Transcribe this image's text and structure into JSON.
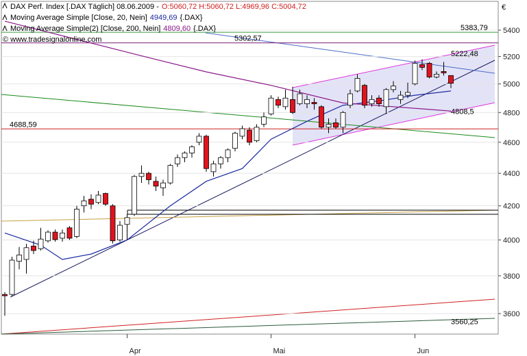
{
  "chart_data": {
    "type": "candlestick",
    "header": {
      "name": "DAX Perf. Index [.DAX  Täglich] 08.06.2009 -",
      "ohlc": "O:5060,72 H:5060,72 L:4969,96 C:5004,72"
    },
    "copyright": "© www.tradesignalonline.com",
    "currency": "€",
    "categories": [
      null,
      null,
      null,
      null,
      null,
      null,
      null,
      null,
      null,
      null,
      null,
      null,
      null,
      null,
      null,
      null,
      null,
      "Apr",
      null,
      null,
      null,
      null,
      null,
      null,
      null,
      null,
      null,
      null,
      null,
      null,
      null,
      null,
      null,
      null,
      null,
      null,
      null,
      "Mai",
      null,
      null,
      null,
      null,
      null,
      null,
      null,
      null,
      null,
      null,
      null,
      null,
      null,
      null,
      null,
      null,
      null,
      null,
      null,
      "Jun",
      null,
      null,
      null,
      null,
      null
    ],
    "open": [
      3700,
      3700,
      3880,
      3890,
      3965,
      3950,
      3995,
      4045,
      4010,
      4070,
      4020,
      4200,
      4240,
      4220,
      4275,
      4200,
      4000,
      4090,
      4150,
      4380,
      4400,
      4350,
      4310,
      4340,
      4460,
      4500,
      4530,
      4600,
      4640,
      4410,
      4460,
      4500,
      4560,
      4640,
      4680,
      4610,
      4720,
      4790,
      4890,
      4840,
      4890,
      4860,
      4860,
      4870,
      4840,
      4700,
      4730,
      4700,
      4850,
      4950,
      4990,
      4860,
      4900,
      4840,
      4960,
      4890,
      4920,
      5000,
      5140,
      5150,
      5050,
      5090,
      5060.72
    ],
    "high": [
      3712,
      3905,
      3960,
      3978,
      3995,
      4070,
      4055,
      4060,
      4060,
      4080,
      4200,
      4260,
      4270,
      4290,
      4280,
      4210,
      4110,
      4150,
      4390,
      4450,
      4410,
      4380,
      4360,
      4460,
      4520,
      4540,
      4580,
      4660,
      4650,
      4480,
      4510,
      4560,
      4670,
      4710,
      4700,
      4720,
      4800,
      4920,
      4910,
      4960,
      4980,
      4960,
      4920,
      4900,
      4850,
      4760,
      4760,
      4810,
      4960,
      5070,
      5000,
      4920,
      4920,
      4970,
      5020,
      4950,
      5010,
      5170,
      5180,
      5160,
      5090,
      5160,
      5060.72
    ],
    "low": [
      3589,
      3690,
      3835,
      3812,
      3920,
      3940,
      3985,
      3990,
      3990,
      4000,
      4010,
      4160,
      4180,
      4210,
      4200,
      3980,
      3990,
      4000,
      4140,
      4340,
      4330,
      4290,
      4260,
      4330,
      4440,
      4470,
      4500,
      4580,
      4410,
      4380,
      4430,
      4470,
      4540,
      4620,
      4580,
      4600,
      4700,
      4780,
      4830,
      4820,
      4790,
      4850,
      4830,
      4820,
      4690,
      4660,
      4690,
      4660,
      4830,
      4940,
      4830,
      4840,
      4840,
      4790,
      4940,
      4860,
      4900,
      4990,
      5100,
      5040,
      5040,
      5060,
      4969.96
    ],
    "close": [
      3693,
      3886,
      3915,
      3956,
      3940,
      4005,
      4045,
      4002,
      4040,
      4010,
      4180,
      4230,
      4210,
      4265,
      4210,
      3995,
      4085,
      4130,
      4380,
      4400,
      4360,
      4320,
      4340,
      4450,
      4500,
      4530,
      4570,
      4640,
      4430,
      4460,
      4500,
      4550,
      4660,
      4690,
      4600,
      4700,
      4770,
      4900,
      4850,
      4900,
      4800,
      4930,
      4890,
      4860,
      4700,
      4720,
      4700,
      4800,
      4930,
      5040,
      4850,
      4890,
      4860,
      4960,
      4985,
      4920,
      4940,
      5150,
      5120,
      5050,
      5070,
      5080,
      5004.72
    ],
    "up_color": "#ffffff",
    "down_color": "#e0141e",
    "series": [
      {
        "name": "Moving Average Simple [Close, 20, Nein]",
        "current": "4949,69",
        "suffix": "{.DAX}",
        "color": "#1a2aa0",
        "x": [
          0,
          5,
          8,
          12,
          17,
          23,
          28,
          33,
          37,
          42,
          47,
          52,
          57,
          62
        ],
        "values": [
          4040,
          3970,
          3890,
          3920,
          4000,
          4200,
          4350,
          4430,
          4620,
          4740,
          4850,
          4880,
          4920,
          4950
        ]
      },
      {
        "name": "Moving Average Simple(2) [Close, 200, Nein]",
        "current": "4809,60",
        "suffix": "{.DAX}",
        "color": "#8a1a8a",
        "x": [
          0,
          9,
          19,
          28,
          37,
          47,
          62
        ],
        "values": [
          5470,
          5343,
          5205,
          5087,
          4990,
          4866,
          4810
        ]
      }
    ],
    "levels": [
      {
        "label": "5383,79",
        "value": 5383.79,
        "color": "#3a9a3a"
      },
      {
        "label": "5302,57",
        "value": 5302.57,
        "color": "#7a1f7a"
      },
      {
        "label": "4688,59",
        "value": 4688.59,
        "color": "#d02020"
      }
    ],
    "trend_labels": [
      {
        "label": "5222,48",
        "value": 5222.48,
        "color": "#cc33cc"
      },
      {
        "label": "4808,5",
        "value": 4808.5,
        "color": "#cc33cc"
      },
      {
        "label": "3560,25",
        "value": 3560.25,
        "color": "#333333"
      }
    ],
    "ylim": [
      3496,
      5627
    ],
    "log": true,
    "yticks": [
      3600,
      3800,
      4000,
      4200,
      4400,
      4600,
      4800,
      5000,
      5200,
      5400
    ],
    "grid": true
  }
}
